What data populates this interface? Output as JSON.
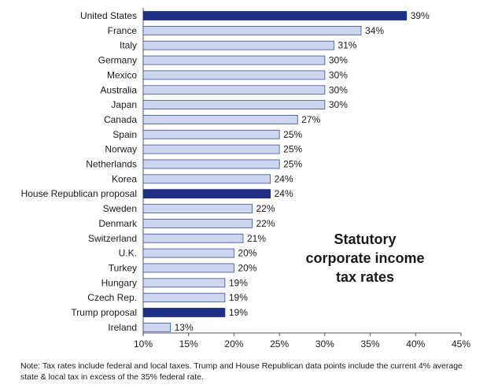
{
  "chart_data": {
    "type": "bar",
    "orientation": "horizontal",
    "categories": [
      "United States",
      "France",
      "Italy",
      "Germany",
      "Mexico",
      "Australia",
      "Japan",
      "Canada",
      "Spain",
      "Norway",
      "Netherlands",
      "Korea",
      "House Republican proposal",
      "Sweden",
      "Denmark",
      "Switzerland",
      "U.K.",
      "Turkey",
      "Hungary",
      "Czech Rep.",
      "Trump proposal",
      "Ireland"
    ],
    "values": [
      39,
      34,
      31,
      30,
      30,
      30,
      30,
      27,
      25,
      25,
      25,
      24,
      24,
      22,
      22,
      21,
      20,
      20,
      19,
      19,
      19,
      13
    ],
    "value_labels": [
      "39%",
      "34%",
      "31%",
      "30%",
      "30%",
      "30%",
      "30%",
      "27%",
      "25%",
      "25%",
      "25%",
      "24%",
      "24%",
      "22%",
      "22%",
      "21%",
      "20%",
      "20%",
      "19%",
      "19%",
      "19%",
      "13%"
    ],
    "highlighted": [
      "United States",
      "House Republican proposal",
      "Trump proposal"
    ],
    "xlim": [
      10,
      45
    ],
    "xticks": [
      "10%",
      "15%",
      "20%",
      "25%",
      "30%",
      "35%",
      "40%",
      "45%"
    ],
    "colors": {
      "default_fill": "#cdd5ef",
      "default_stroke": "#3c4f9a",
      "highlight_fill": "#1f2f86"
    },
    "grid": false,
    "annotation": "Statutory\ncorporate income\ntax rates"
  },
  "note": "Note: Tax rates include federal and local taxes. Trump and House Republican data points include the current 4% average state & local tax in excess of the 35% federal rate."
}
